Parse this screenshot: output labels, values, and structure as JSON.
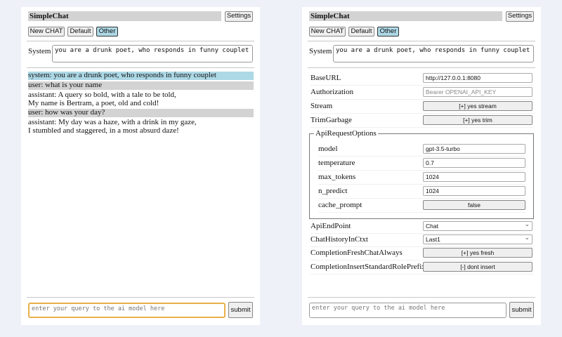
{
  "app_title": "SimpleChat",
  "settings_label": "Settings",
  "buttons": {
    "new_chat": "New CHAT",
    "default": "Default",
    "other": "Other"
  },
  "system": {
    "label": "System",
    "value": "you are a drunk poet, who responds in funny couplet"
  },
  "chat": [
    {
      "role": "system",
      "text": "system: you are a drunk poet, who responds in funny couplet"
    },
    {
      "role": "user",
      "text": "user: what is your name"
    },
    {
      "role": "assistant",
      "lines": [
        "assistant: A query so bold, with a tale to be told,",
        "My name is Bertram, a poet, old and cold!"
      ]
    },
    {
      "role": "user",
      "text": "user: how was your day?"
    },
    {
      "role": "assistant",
      "lines": [
        "assistant: My day was a haze, with a drink in my gaze,",
        "I stumbled and staggered, in a most absurd daze!"
      ]
    }
  ],
  "query": {
    "placeholder": "enter your query to the ai model here",
    "submit": "submit"
  },
  "settings": {
    "base_url": {
      "label": "BaseURL",
      "value": "http://127.0.0.1:8080"
    },
    "authorization": {
      "label": "Authorization",
      "placeholder": "Bearer OPENAI_API_KEY"
    },
    "stream": {
      "label": "Stream",
      "value": "[+] yes stream"
    },
    "trim_garbage": {
      "label": "TrimGarbage",
      "value": "[+] yes trim"
    },
    "api_request_options": {
      "legend": "ApiRequestOptions",
      "model": {
        "label": "model",
        "value": "gpt-3.5-turbo"
      },
      "temperature": {
        "label": "temperature",
        "value": "0.7"
      },
      "max_tokens": {
        "label": "max_tokens",
        "value": "1024"
      },
      "n_predict": {
        "label": "n_predict",
        "value": "1024"
      },
      "cache_prompt": {
        "label": "cache_prompt",
        "value": "false"
      }
    },
    "api_endpoint": {
      "label": "ApiEndPoint",
      "value": "Chat"
    },
    "chat_history": {
      "label": "ChatHistoryInCtxt",
      "value": "Last1"
    },
    "fresh_chat": {
      "label": "CompletionFreshChatAlways",
      "value": "[+] yes fresh"
    },
    "insert_prefix": {
      "label": "CompletionInsertStandardRolePrefix",
      "value": "[-] dont insert"
    }
  },
  "colors": {
    "selected": "#add8e6",
    "user_bg": "#d3d3d3",
    "focus": "#e8b04a",
    "page_bg": "#eef1f7"
  }
}
